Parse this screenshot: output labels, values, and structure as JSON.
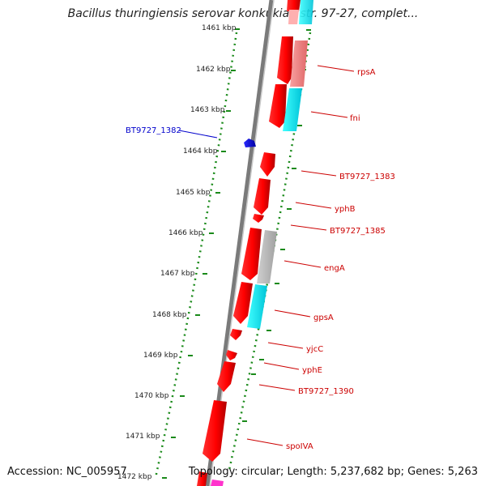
{
  "title": "Bacillus thuringiensis serovar konkukian str. 97-27, complet...",
  "footer": {
    "accession": "Accession: NC_005957",
    "topology": "Topology: circular; Length: 5,237,682 bp; Genes: 5,263"
  },
  "scale_ticks": [
    "1461 kbp",
    "1462 kbp",
    "1463 kbp",
    "1464 kbp",
    "1465 kbp",
    "1466 kbp",
    "1467 kbp",
    "1468 kbp",
    "1469 kbp",
    "1470 kbp",
    "1471 kbp",
    "1472 kbp"
  ],
  "genes": [
    {
      "label": "rpsA",
      "color": "#cc0000"
    },
    {
      "label": "fni",
      "color": "#cc0000"
    },
    {
      "label": "BT9727_1382",
      "color": "#0000cc"
    },
    {
      "label": "BT9727_1383",
      "color": "#cc0000"
    },
    {
      "label": "yphB",
      "color": "#cc0000"
    },
    {
      "label": "BT9727_1385",
      "color": "#cc0000"
    },
    {
      "label": "engA",
      "color": "#cc0000"
    },
    {
      "label": "gpsA",
      "color": "#cc0000"
    },
    {
      "label": "yjcC",
      "color": "#cc0000"
    },
    {
      "label": "yphE",
      "color": "#cc0000"
    },
    {
      "label": "BT9727_1390",
      "color": "#cc0000"
    },
    {
      "label": "spoIVA",
      "color": "#cc0000"
    }
  ],
  "colors": {
    "gene_forward": "#ff0000",
    "gene_reverse": "#0000ff",
    "cog_cyan": "#00e5f0",
    "cog_salmon": "#f08080",
    "cog_gray": "#b0b0b0",
    "cog_pink": "#ff33cc",
    "backbone": "#808080",
    "scale_ticks": "#1a8a1a"
  }
}
